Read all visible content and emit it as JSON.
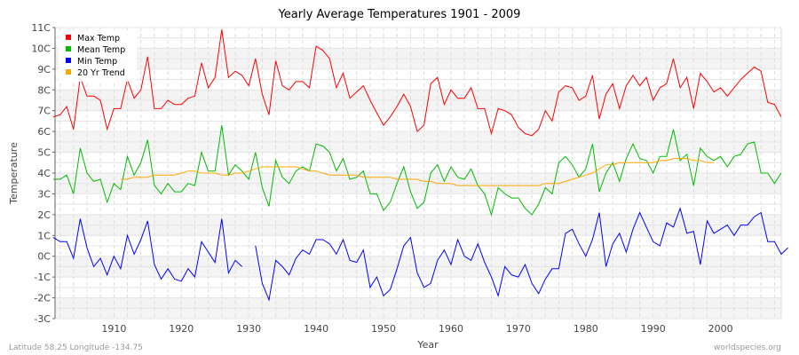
{
  "chart_data": {
    "type": "line",
    "title": "Yearly Average Temperatures 1901 - 2009",
    "xlabel": "Year",
    "ylabel": "Temperature",
    "xlim": [
      1901,
      2009
    ],
    "ylim": [
      -3,
      11
    ],
    "y_ticks": [
      "-3C",
      "-2C",
      "-1C",
      "0C",
      "1C",
      "2C",
      "3C",
      "4C",
      "5C",
      "6C",
      "7C",
      "8C",
      "9C",
      "10C",
      "11C"
    ],
    "x_ticks": [
      "1910",
      "1920",
      "1930",
      "1940",
      "1950",
      "1960",
      "1970",
      "1980",
      "1990",
      "2000"
    ],
    "grid": true,
    "legend_placement": "top-left",
    "x_start": 1901,
    "series": [
      {
        "name": "Max Temp",
        "color": "#ff0000",
        "values": [
          6.7,
          6.8,
          7.2,
          6.1,
          8.6,
          7.7,
          7.7,
          7.5,
          6.1,
          7.1,
          7.1,
          8.5,
          7.6,
          8.0,
          9.6,
          7.1,
          7.1,
          7.5,
          7.3,
          7.3,
          7.6,
          7.7,
          9.3,
          8.1,
          8.6,
          10.9,
          8.6,
          8.9,
          8.7,
          8.2,
          9.5,
          7.8,
          6.8,
          9.4,
          8.2,
          8.0,
          8.4,
          8.4,
          8.1,
          10.1,
          9.9,
          9.5,
          8.1,
          8.8,
          7.6,
          7.9,
          8.2,
          7.5,
          6.9,
          6.3,
          6.7,
          7.2,
          7.8,
          7.2,
          6.0,
          6.3,
          8.3,
          8.6,
          7.3,
          8.0,
          7.6,
          7.6,
          8.1,
          7.1,
          7.1,
          5.9,
          7.1,
          7.0,
          6.8,
          6.2,
          5.9,
          5.8,
          6.1,
          7.0,
          6.5,
          7.9,
          8.2,
          8.1,
          7.5,
          7.7,
          8.7,
          6.6,
          7.8,
          8.3,
          7.1,
          8.2,
          8.7,
          8.2,
          8.6,
          7.5,
          8.1,
          8.3,
          9.5,
          8.1,
          8.6,
          7.1,
          8.8,
          8.4,
          7.9,
          8.1,
          7.7,
          8.1,
          8.5,
          8.8,
          9.1,
          8.9,
          7.4,
          7.3,
          6.7
        ]
      },
      {
        "name": "Mean Temp",
        "color": "#00bb00",
        "values": [
          3.7,
          3.7,
          3.9,
          3.0,
          5.2,
          4.0,
          3.6,
          3.7,
          2.6,
          3.5,
          3.2,
          4.8,
          3.9,
          4.5,
          5.6,
          3.4,
          3.0,
          3.5,
          3.1,
          3.1,
          3.5,
          3.4,
          5.0,
          4.1,
          4.1,
          6.3,
          3.9,
          4.4,
          4.1,
          3.7,
          5.0,
          3.3,
          2.4,
          4.6,
          3.8,
          3.5,
          4.1,
          4.3,
          4.1,
          5.4,
          5.3,
          5.0,
          4.1,
          4.7,
          3.7,
          3.8,
          4.1,
          3.0,
          3.0,
          2.2,
          2.6,
          3.5,
          4.3,
          3.1,
          2.3,
          2.6,
          4.0,
          4.4,
          3.6,
          4.3,
          3.8,
          3.7,
          4.2,
          3.4,
          3.0,
          2.0,
          3.3,
          3.0,
          2.8,
          2.8,
          2.3,
          2.0,
          2.5,
          3.3,
          3.0,
          4.5,
          4.8,
          4.4,
          3.8,
          4.2,
          5.4,
          3.1,
          4.0,
          4.5,
          3.6,
          4.7,
          5.4,
          4.7,
          4.6,
          4.0,
          4.8,
          4.8,
          6.1,
          4.6,
          4.9,
          3.4,
          5.2,
          4.8,
          4.6,
          4.8,
          4.3,
          4.8,
          4.9,
          5.4,
          5.5,
          4.0,
          4.0,
          3.5,
          4.0
        ]
      },
      {
        "name": "Min Temp",
        "color": "#0000ff",
        "values": [
          0.9,
          0.7,
          0.7,
          -0.1,
          1.8,
          0.4,
          -0.5,
          -0.1,
          -0.9,
          0.0,
          -0.6,
          1.0,
          0.1,
          0.8,
          1.7,
          -0.4,
          -1.1,
          -0.6,
          -1.1,
          -1.2,
          -0.6,
          -1.0,
          0.7,
          0.2,
          -0.3,
          1.8,
          -0.8,
          -0.2,
          -0.5,
          null,
          0.5,
          -1.3,
          -2.1,
          -0.2,
          -0.5,
          -0.9,
          -0.1,
          0.3,
          0.1,
          0.8,
          0.8,
          0.6,
          0.1,
          0.8,
          -0.2,
          -0.3,
          0.3,
          -1.5,
          -1.0,
          -1.9,
          -1.6,
          -0.6,
          0.5,
          0.9,
          -0.8,
          -1.5,
          -1.3,
          -0.2,
          0.3,
          -0.4,
          0.8,
          0.0,
          -0.2,
          0.6,
          -0.3,
          -1.0,
          -1.9,
          -0.5,
          -0.9,
          -1.0,
          -0.4,
          -1.3,
          -1.8,
          -1.1,
          -0.6,
          -0.6,
          1.1,
          1.3,
          0.6,
          0.0,
          0.8,
          2.1,
          -0.5,
          0.6,
          1.1,
          0.2,
          1.3,
          2.1,
          1.4,
          0.7,
          0.5,
          1.6,
          1.4,
          2.3,
          1.1,
          1.2,
          -0.4,
          1.7,
          1.1,
          1.3,
          1.5,
          1.0,
          1.5,
          1.5,
          1.9,
          2.1,
          0.7,
          0.7,
          0.1,
          0.4
        ]
      },
      {
        "name": "20 Yr Trend",
        "color": "#ffa500",
        "values": [
          null,
          null,
          null,
          null,
          null,
          null,
          null,
          null,
          null,
          null,
          3.7,
          3.7,
          3.8,
          3.8,
          3.8,
          3.9,
          3.9,
          3.9,
          3.9,
          4.0,
          4.1,
          4.1,
          4.0,
          4.0,
          4.0,
          3.9,
          3.9,
          4.0,
          4.0,
          4.1,
          4.2,
          4.3,
          4.3,
          4.3,
          4.3,
          4.3,
          4.3,
          4.2,
          4.1,
          4.1,
          4.0,
          3.9,
          3.9,
          3.9,
          3.9,
          3.9,
          3.8,
          3.8,
          3.8,
          3.8,
          3.8,
          3.7,
          3.7,
          3.7,
          3.7,
          3.6,
          3.6,
          3.5,
          3.5,
          3.5,
          3.4,
          3.4,
          3.4,
          3.4,
          3.4,
          3.4,
          3.4,
          3.4,
          3.4,
          3.4,
          3.4,
          3.4,
          3.4,
          3.5,
          3.5,
          3.5,
          3.6,
          3.7,
          3.8,
          3.9,
          4.0,
          4.2,
          4.4,
          4.4,
          4.5,
          4.5,
          4.5,
          4.5,
          4.5,
          4.5,
          4.6,
          4.6,
          4.7,
          4.7,
          4.7,
          4.6,
          4.6,
          4.5,
          4.5,
          null,
          null,
          null,
          null,
          null,
          null,
          null,
          null,
          null,
          null
        ]
      }
    ]
  },
  "footer": {
    "location": "Latitude 58.25 Longitude -134.75",
    "source": "worldspecies.org"
  }
}
